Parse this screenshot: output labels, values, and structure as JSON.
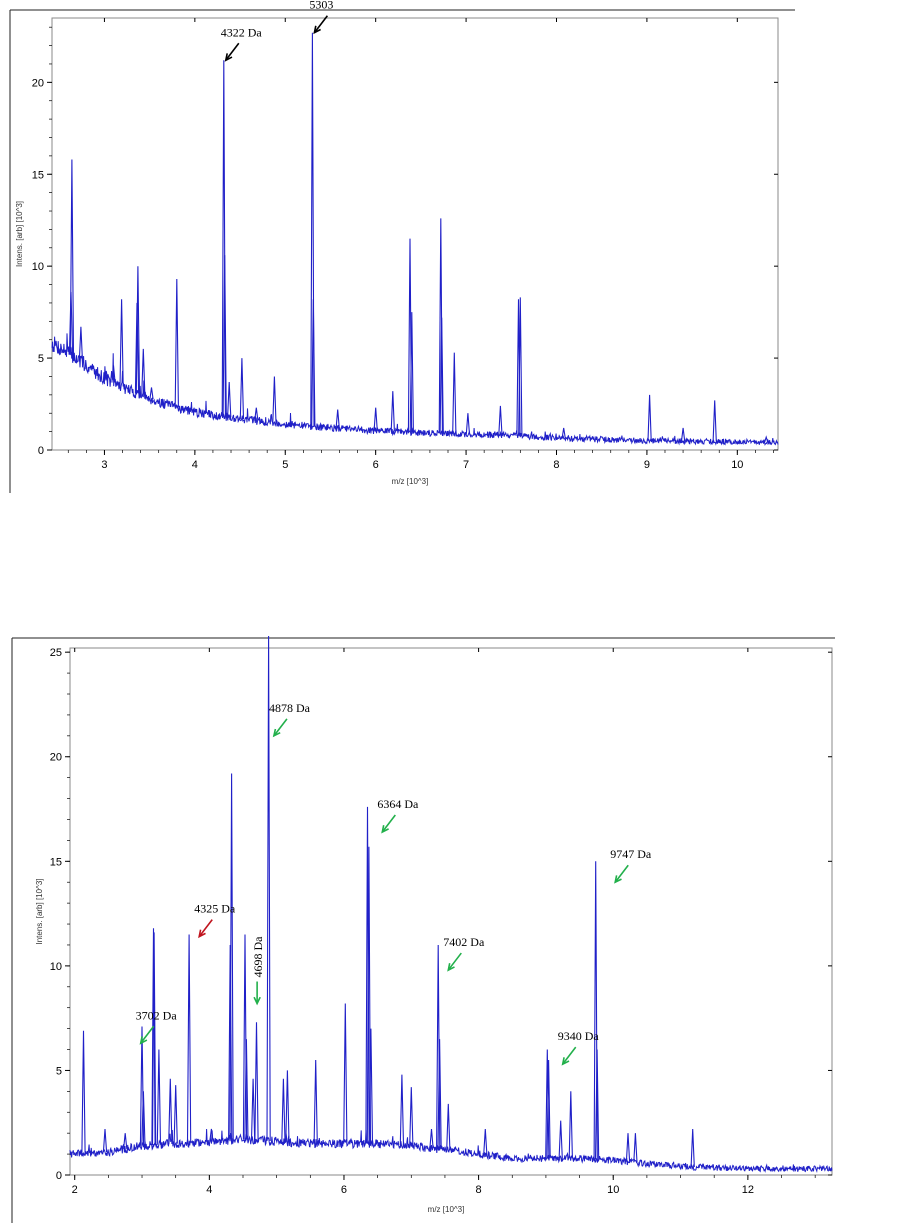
{
  "chart_data": [
    {
      "type": "line",
      "title": "",
      "xlabel": "m/z [10^3]",
      "ylabel": "Intens. [arb] [10^3]",
      "xlim": [
        2.42,
        10.45
      ],
      "ylim": [
        0,
        23.5
      ],
      "x_ticks": [
        "3",
        "4",
        "5",
        "6",
        "7",
        "8",
        "9",
        "10"
      ],
      "y_ticks": [
        "0",
        "5",
        "10",
        "15",
        "20"
      ],
      "grid": false,
      "line_color": "#2020c8",
      "arrow_color": "#000000",
      "series": [
        {
          "baseline": [
            [
              2.42,
              5.8
            ],
            [
              2.6,
              5.3
            ],
            [
              2.8,
              4.6
            ],
            [
              3.0,
              3.9
            ],
            [
              3.3,
              3.2
            ],
            [
              3.6,
              2.6
            ],
            [
              4.0,
              2.05
            ],
            [
              4.5,
              1.7
            ],
            [
              5.0,
              1.4
            ],
            [
              5.5,
              1.2
            ],
            [
              6.0,
              1.05
            ],
            [
              6.5,
              0.95
            ],
            [
              7.0,
              0.85
            ],
            [
              7.5,
              0.8
            ],
            [
              8.0,
              0.65
            ],
            [
              9.0,
              0.5
            ],
            [
              10.0,
              0.45
            ],
            [
              10.45,
              0.4
            ]
          ],
          "peaks": [
            {
              "x": 2.64,
              "y": 15.8
            },
            {
              "x": 2.63,
              "y": 8.6
            },
            {
              "x": 2.74,
              "y": 6.7
            },
            {
              "x": 3.02,
              "y": 4.3
            },
            {
              "x": 3.1,
              "y": 4.6
            },
            {
              "x": 3.19,
              "y": 8.2
            },
            {
              "x": 3.37,
              "y": 10.0
            },
            {
              "x": 3.36,
              "y": 8.0
            },
            {
              "x": 3.43,
              "y": 5.5
            },
            {
              "x": 3.52,
              "y": 3.4
            },
            {
              "x": 3.8,
              "y": 9.3
            },
            {
              "x": 4.32,
              "y": 21.2
            },
            {
              "x": 4.33,
              "y": 10.6
            },
            {
              "x": 4.38,
              "y": 3.7
            },
            {
              "x": 4.52,
              "y": 5.0
            },
            {
              "x": 4.68,
              "y": 2.3
            },
            {
              "x": 4.88,
              "y": 4.0
            },
            {
              "x": 5.3,
              "y": 22.7
            },
            {
              "x": 5.31,
              "y": 8.2
            },
            {
              "x": 5.58,
              "y": 2.2
            },
            {
              "x": 6.0,
              "y": 2.3
            },
            {
              "x": 6.19,
              "y": 3.2
            },
            {
              "x": 6.38,
              "y": 11.5
            },
            {
              "x": 6.4,
              "y": 7.5
            },
            {
              "x": 6.72,
              "y": 12.6
            },
            {
              "x": 6.73,
              "y": 7.2
            },
            {
              "x": 6.87,
              "y": 5.3
            },
            {
              "x": 7.02,
              "y": 2.0
            },
            {
              "x": 7.38,
              "y": 2.4
            },
            {
              "x": 7.58,
              "y": 8.2
            },
            {
              "x": 7.6,
              "y": 8.3
            },
            {
              "x": 8.08,
              "y": 1.2
            },
            {
              "x": 9.03,
              "y": 3.0
            },
            {
              "x": 9.4,
              "y": 1.2
            },
            {
              "x": 9.75,
              "y": 2.7
            },
            {
              "x": 10.32,
              "y": 0.7
            }
          ]
        }
      ],
      "annotations": [
        {
          "text": "4322 Da",
          "x": 4.32,
          "y": 21.2,
          "color": "black"
        },
        {
          "text": "5303",
          "x": 5.3,
          "y": 22.7,
          "color": "black"
        }
      ]
    },
    {
      "type": "line",
      "title": "",
      "xlabel": "m/z [10^3]",
      "ylabel": "Intens. [arb] [10^3]",
      "xlim": [
        1.93,
        13.25
      ],
      "ylim": [
        0,
        25.2
      ],
      "x_ticks": [
        "2",
        "4",
        "6",
        "8",
        "10",
        "12"
      ],
      "y_ticks": [
        "0",
        "5",
        "10",
        "15",
        "20",
        "25"
      ],
      "grid": false,
      "line_color": "#2020c8",
      "arrow_color": "#22b04b",
      "series": [
        {
          "baseline": [
            [
              1.93,
              1.0
            ],
            [
              2.5,
              1.1
            ],
            [
              3.0,
              1.4
            ],
            [
              3.5,
              1.5
            ],
            [
              4.0,
              1.6
            ],
            [
              4.5,
              1.7
            ],
            [
              5.0,
              1.6
            ],
            [
              5.5,
              1.5
            ],
            [
              6.0,
              1.5
            ],
            [
              6.5,
              1.5
            ],
            [
              7.0,
              1.4
            ],
            [
              7.5,
              1.2
            ],
            [
              8.0,
              1.0
            ],
            [
              8.5,
              0.8
            ],
            [
              9.0,
              0.8
            ],
            [
              9.5,
              0.8
            ],
            [
              10.0,
              0.7
            ],
            [
              11.0,
              0.4
            ],
            [
              12.0,
              0.3
            ],
            [
              13.25,
              0.3
            ]
          ],
          "peaks": [
            {
              "x": 2.13,
              "y": 6.9
            },
            {
              "x": 2.45,
              "y": 2.2
            },
            {
              "x": 2.75,
              "y": 2.0
            },
            {
              "x": 3.0,
              "y": 7.1
            },
            {
              "x": 3.02,
              "y": 4.0
            },
            {
              "x": 3.17,
              "y": 11.8
            },
            {
              "x": 3.18,
              "y": 11.6
            },
            {
              "x": 3.25,
              "y": 6.0
            },
            {
              "x": 3.42,
              "y": 4.6
            },
            {
              "x": 3.5,
              "y": 4.3
            },
            {
              "x": 3.7,
              "y": 11.5
            },
            {
              "x": 4.03,
              "y": 2.2
            },
            {
              "x": 4.31,
              "y": 11.0
            },
            {
              "x": 4.33,
              "y": 19.2
            },
            {
              "x": 4.53,
              "y": 11.5
            },
            {
              "x": 4.55,
              "y": 6.5
            },
            {
              "x": 4.65,
              "y": 4.6
            },
            {
              "x": 4.7,
              "y": 7.3
            },
            {
              "x": 4.88,
              "y": 26.0
            },
            {
              "x": 5.1,
              "y": 4.6
            },
            {
              "x": 5.16,
              "y": 5.0
            },
            {
              "x": 5.58,
              "y": 5.5
            },
            {
              "x": 6.02,
              "y": 8.2
            },
            {
              "x": 6.35,
              "y": 17.6
            },
            {
              "x": 6.37,
              "y": 15.7
            },
            {
              "x": 6.4,
              "y": 7.0
            },
            {
              "x": 6.86,
              "y": 4.8
            },
            {
              "x": 7.0,
              "y": 4.2
            },
            {
              "x": 7.3,
              "y": 2.2
            },
            {
              "x": 7.4,
              "y": 11.0
            },
            {
              "x": 7.42,
              "y": 6.5
            },
            {
              "x": 7.55,
              "y": 3.4
            },
            {
              "x": 8.1,
              "y": 2.2
            },
            {
              "x": 9.02,
              "y": 6.0
            },
            {
              "x": 9.04,
              "y": 5.5
            },
            {
              "x": 9.22,
              "y": 2.6
            },
            {
              "x": 9.37,
              "y": 4.0
            },
            {
              "x": 9.74,
              "y": 15.0
            },
            {
              "x": 9.76,
              "y": 6.0
            },
            {
              "x": 10.22,
              "y": 2.0
            },
            {
              "x": 10.33,
              "y": 2.0
            },
            {
              "x": 11.18,
              "y": 2.2
            }
          ]
        }
      ],
      "annotations": [
        {
          "text": "3702 Da",
          "x": 2.95,
          "y": 6.3,
          "color": "green"
        },
        {
          "text": "4325 Da",
          "x": 3.82,
          "y": 11.4,
          "color": "red"
        },
        {
          "text": "4698 Da",
          "x": 4.68,
          "y": 8.2,
          "color": "green",
          "rotated": true
        },
        {
          "text": "4878 Da",
          "x": 4.93,
          "y": 21.0,
          "color": "green"
        },
        {
          "text": "6364 Da",
          "x": 6.54,
          "y": 16.4,
          "color": "green"
        },
        {
          "text": "7402 Da",
          "x": 7.52,
          "y": 9.8,
          "color": "green"
        },
        {
          "text": "9340 Da",
          "x": 9.22,
          "y": 5.3,
          "color": "green"
        },
        {
          "text": "9747 Da",
          "x": 10.0,
          "y": 14.0,
          "color": "green"
        }
      ]
    }
  ]
}
